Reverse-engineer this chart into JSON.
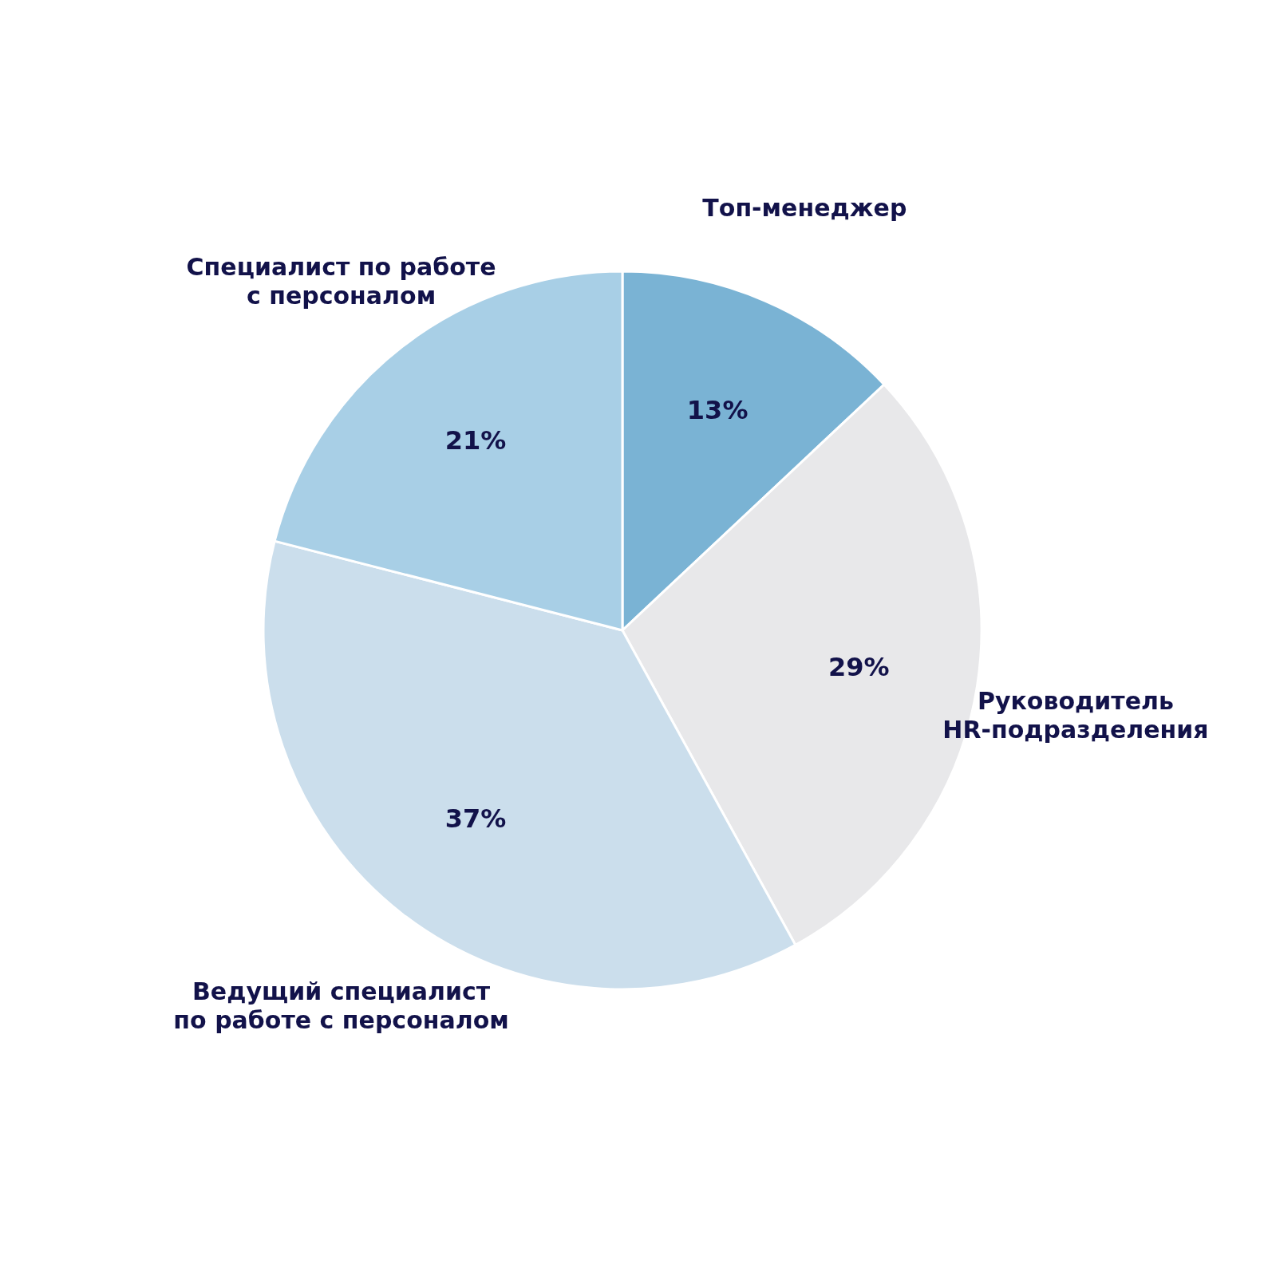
{
  "chart_data": {
    "type": "pie",
    "categories": [
      "Топ-менеджер",
      "Руководитель\nHR-подразделения",
      "Ведущий специалист\nпо работе с персоналом",
      "Специалист по работе\nс персоналом"
    ],
    "values": [
      13,
      29,
      37,
      21
    ],
    "value_labels": [
      "13%",
      "29%",
      "37%",
      "21%"
    ],
    "colors": [
      "#7ab3d4",
      "#e8e8ea",
      "#cbdeec",
      "#a8cfe6"
    ]
  }
}
